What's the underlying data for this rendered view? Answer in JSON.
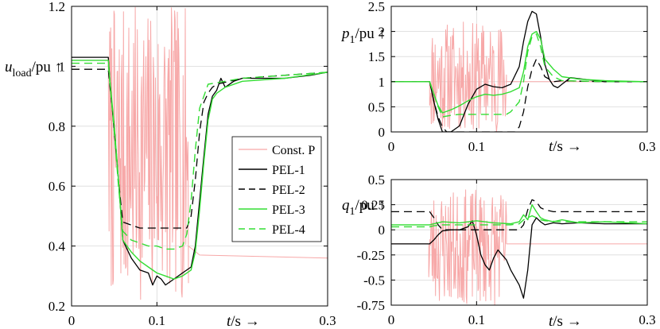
{
  "chart_data": [
    {
      "type": "line",
      "id": "left",
      "ylabel_main": "u",
      "ylabel_sub": "load",
      "ylabel_rest": "/pu ↑",
      "xlabel_main": "t",
      "xlabel_rest": "/s →",
      "xlim": [
        0,
        0.3
      ],
      "ylim": [
        0.2,
        1.2
      ],
      "xticks": [
        0,
        0.1,
        0.3
      ],
      "xtick_labels": [
        "0",
        "0.1",
        "0.3"
      ],
      "yticks": [
        0.2,
        0.4,
        0.6,
        0.8,
        1.0,
        1.2
      ],
      "ytick_labels": [
        "0.2",
        "0.4",
        "0.6",
        "0.8",
        "1",
        "1.2"
      ],
      "legend": [
        "Const. P",
        "PEL-1",
        "PEL-2",
        "PEL-3",
        "PEL-4"
      ],
      "series": [
        {
          "name": "Const. P",
          "noise": {
            "x0": 0.044,
            "x1": 0.137,
            "lo": 0.22,
            "hi": 1.2,
            "seed": 7,
            "n": 150
          },
          "x": [
            0,
            0.043,
            0.044,
            0.137,
            0.15,
            0.3
          ],
          "y": [
            1.02,
            1.02,
            0.45,
            0.4,
            0.37,
            0.36
          ]
        },
        {
          "name": "PEL-1",
          "x": [
            0,
            0.043,
            0.045,
            0.05,
            0.055,
            0.06,
            0.07,
            0.08,
            0.09,
            0.095,
            0.1,
            0.105,
            0.11,
            0.12,
            0.13,
            0.14,
            0.145,
            0.15,
            0.155,
            0.16,
            0.165,
            0.17,
            0.175,
            0.18,
            0.19,
            0.2,
            0.22,
            0.25,
            0.28,
            0.3
          ],
          "y": [
            1.03,
            1.03,
            0.95,
            0.78,
            0.62,
            0.42,
            0.36,
            0.32,
            0.31,
            0.27,
            0.3,
            0.29,
            0.27,
            0.29,
            0.31,
            0.33,
            0.4,
            0.55,
            0.7,
            0.84,
            0.9,
            0.92,
            0.96,
            0.93,
            0.95,
            0.96,
            0.96,
            0.96,
            0.97,
            0.98
          ]
        },
        {
          "name": "PEL-2",
          "x": [
            0,
            0.043,
            0.045,
            0.05,
            0.055,
            0.06,
            0.08,
            0.1,
            0.12,
            0.135,
            0.14,
            0.145,
            0.15,
            0.155,
            0.16,
            0.165,
            0.17,
            0.2,
            0.25,
            0.3
          ],
          "y": [
            0.99,
            0.99,
            0.93,
            0.8,
            0.62,
            0.48,
            0.46,
            0.46,
            0.46,
            0.46,
            0.5,
            0.62,
            0.78,
            0.88,
            0.91,
            0.93,
            0.94,
            0.96,
            0.97,
            0.98
          ]
        },
        {
          "name": "PEL-3",
          "x": [
            0,
            0.043,
            0.045,
            0.05,
            0.055,
            0.06,
            0.07,
            0.08,
            0.09,
            0.1,
            0.11,
            0.12,
            0.13,
            0.14,
            0.145,
            0.15,
            0.155,
            0.16,
            0.165,
            0.17,
            0.18,
            0.2,
            0.25,
            0.3
          ],
          "y": [
            1.02,
            1.02,
            0.95,
            0.8,
            0.62,
            0.42,
            0.38,
            0.35,
            0.33,
            0.31,
            0.3,
            0.29,
            0.3,
            0.32,
            0.38,
            0.52,
            0.68,
            0.82,
            0.89,
            0.91,
            0.93,
            0.95,
            0.96,
            0.98
          ]
        },
        {
          "name": "PEL-4",
          "x": [
            0,
            0.043,
            0.045,
            0.05,
            0.055,
            0.06,
            0.07,
            0.08,
            0.09,
            0.1,
            0.11,
            0.12,
            0.13,
            0.135,
            0.14,
            0.145,
            0.15,
            0.16,
            0.2,
            0.25,
            0.3
          ],
          "y": [
            1.01,
            1.01,
            0.94,
            0.78,
            0.6,
            0.45,
            0.42,
            0.41,
            0.4,
            0.4,
            0.39,
            0.39,
            0.4,
            0.44,
            0.55,
            0.72,
            0.86,
            0.94,
            0.96,
            0.97,
            0.98
          ]
        }
      ]
    },
    {
      "type": "line",
      "id": "top-right",
      "ylabel_main": "p",
      "ylabel_sub": "1",
      "ylabel_rest": "/pu ↑",
      "xlabel_main": "t",
      "xlabel_rest": "/s →",
      "xlim": [
        0,
        0.3
      ],
      "ylim": [
        0,
        2.5
      ],
      "xticks": [
        0,
        0.1,
        0.3
      ],
      "xtick_labels": [
        "0",
        "0.1",
        "0.3"
      ],
      "yticks": [
        0,
        0.5,
        1,
        1.5,
        2,
        2.5
      ],
      "ytick_labels": [
        "0",
        "0.5",
        "1",
        "1.5",
        "2",
        "2.5"
      ],
      "series": [
        {
          "name": "Const. P",
          "noise": {
            "x0": 0.045,
            "x1": 0.135,
            "lo": 0,
            "hi": 2.2,
            "seed": 11,
            "n": 140
          },
          "x": [
            0,
            0.044,
            0.045,
            0.135,
            0.14,
            0.3
          ],
          "y": [
            1,
            1,
            1,
            1,
            1,
            1
          ]
        },
        {
          "name": "PEL-1",
          "x": [
            0,
            0.045,
            0.05,
            0.055,
            0.06,
            0.065,
            0.07,
            0.08,
            0.09,
            0.1,
            0.11,
            0.12,
            0.13,
            0.14,
            0.15,
            0.155,
            0.16,
            0.165,
            0.17,
            0.175,
            0.18,
            0.185,
            0.19,
            0.195,
            0.2,
            0.21,
            0.22,
            0.25,
            0.3
          ],
          "y": [
            1,
            1,
            0.6,
            0.25,
            0,
            0,
            0,
            0.12,
            0.55,
            0.85,
            0.95,
            0.9,
            0.88,
            0.95,
            1.3,
            1.8,
            2.2,
            2.4,
            2.35,
            1.9,
            1.35,
            1.05,
            0.92,
            0.88,
            0.95,
            1.08,
            1.06,
            1.0,
            1.0
          ]
        },
        {
          "name": "PEL-2",
          "x": [
            0,
            0.045,
            0.05,
            0.055,
            0.06,
            0.065,
            0.13,
            0.145,
            0.15,
            0.155,
            0.16,
            0.165,
            0.17,
            0.175,
            0.18,
            0.185,
            0.19,
            0.2,
            0.22,
            0.25,
            0.3
          ],
          "y": [
            1,
            1,
            0.6,
            0.3,
            0.1,
            0,
            0,
            0,
            0.1,
            0.4,
            0.9,
            1.25,
            1.45,
            1.3,
            1.1,
            1.05,
            1.0,
            1.02,
            1.01,
            1.0,
            1.0
          ]
        },
        {
          "name": "PEL-3",
          "x": [
            0,
            0.045,
            0.05,
            0.055,
            0.06,
            0.07,
            0.08,
            0.09,
            0.1,
            0.11,
            0.12,
            0.13,
            0.14,
            0.15,
            0.155,
            0.16,
            0.165,
            0.17,
            0.175,
            0.18,
            0.19,
            0.2,
            0.22,
            0.25,
            0.3
          ],
          "y": [
            1,
            1,
            0.75,
            0.52,
            0.38,
            0.44,
            0.52,
            0.62,
            0.7,
            0.75,
            0.73,
            0.75,
            0.8,
            0.88,
            1.2,
            1.7,
            1.95,
            2.0,
            1.85,
            1.45,
            1.25,
            1.1,
            1.05,
            1.02,
            1.0
          ]
        },
        {
          "name": "PEL-4",
          "x": [
            0,
            0.045,
            0.05,
            0.055,
            0.06,
            0.07,
            0.08,
            0.1,
            0.12,
            0.135,
            0.14,
            0.15,
            0.155,
            0.16,
            0.165,
            0.17,
            0.175,
            0.18,
            0.19,
            0.2,
            0.25,
            0.3
          ],
          "y": [
            1,
            1,
            0.75,
            0.5,
            0.3,
            0.33,
            0.35,
            0.35,
            0.35,
            0.35,
            0.4,
            0.6,
            1.0,
            1.6,
            1.9,
            1.95,
            1.7,
            1.3,
            1.1,
            1.02,
            1.0,
            1.0
          ]
        }
      ]
    },
    {
      "type": "line",
      "id": "bottom-right",
      "ylabel_main": "q",
      "ylabel_sub": "1",
      "ylabel_rest": "/pu ↑",
      "xlabel_main": "t",
      "xlabel_rest": "/s →",
      "xlim": [
        0,
        0.3
      ],
      "ylim": [
        -0.75,
        0.5
      ],
      "xticks": [
        0,
        0.1,
        0.3
      ],
      "xtick_labels": [
        "0",
        "0.1",
        "0.3"
      ],
      "yticks": [
        -0.75,
        -0.5,
        -0.25,
        0,
        0.25,
        0.5
      ],
      "ytick_labels": [
        "-0.75",
        "-0.5",
        "-0.25",
        "0",
        "0.25",
        "0.5"
      ],
      "series": [
        {
          "name": "Const. P",
          "noise": {
            "x0": 0.044,
            "x1": 0.135,
            "lo": -0.75,
            "hi": 0.4,
            "seed": 23,
            "n": 140
          },
          "x": [
            0,
            0.043,
            0.044,
            0.135,
            0.14,
            0.3
          ],
          "y": [
            -0.14,
            -0.14,
            -0.14,
            -0.14,
            -0.14,
            -0.14
          ]
        },
        {
          "name": "PEL-1",
          "x": [
            0,
            0.045,
            0.05,
            0.055,
            0.06,
            0.07,
            0.08,
            0.09,
            0.095,
            0.1,
            0.105,
            0.11,
            0.115,
            0.12,
            0.125,
            0.13,
            0.135,
            0.14,
            0.15,
            0.155,
            0.16,
            0.165,
            0.17,
            0.175,
            0.18,
            0.19,
            0.2,
            0.22,
            0.25,
            0.3
          ],
          "y": [
            -0.14,
            -0.14,
            -0.1,
            -0.05,
            -0.01,
            0,
            0,
            0.03,
            0.09,
            -0.05,
            -0.25,
            -0.35,
            -0.4,
            -0.28,
            -0.2,
            -0.25,
            -0.3,
            -0.4,
            -0.55,
            -0.68,
            -0.4,
            0.05,
            0.12,
            0.08,
            0.05,
            0.07,
            0.06,
            0.07,
            0.06,
            0.06
          ]
        },
        {
          "name": "PEL-2",
          "x": [
            0,
            0.045,
            0.05,
            0.055,
            0.06,
            0.07,
            0.13,
            0.15,
            0.155,
            0.16,
            0.165,
            0.17,
            0.175,
            0.18,
            0.19,
            0.2,
            0.25,
            0.3
          ],
          "y": [
            0.18,
            0.18,
            0.12,
            0.05,
            0,
            0,
            0,
            0,
            0.05,
            0.2,
            0.3,
            0.28,
            0.22,
            0.2,
            0.18,
            0.18,
            0.18,
            0.18
          ]
        },
        {
          "name": "PEL-3",
          "x": [
            0,
            0.045,
            0.05,
            0.06,
            0.08,
            0.1,
            0.12,
            0.14,
            0.15,
            0.155,
            0.16,
            0.165,
            0.17,
            0.175,
            0.18,
            0.19,
            0.2,
            0.22,
            0.25,
            0.3
          ],
          "y": [
            0.05,
            0.05,
            0.06,
            0.08,
            0.07,
            0.09,
            0.07,
            0.06,
            0.08,
            0.15,
            0.1,
            0.25,
            0.18,
            0.12,
            0.1,
            0.08,
            0.1,
            0.07,
            0.08,
            0.06
          ]
        },
        {
          "name": "PEL-4",
          "x": [
            0,
            0.045,
            0.05,
            0.06,
            0.08,
            0.1,
            0.12,
            0.14,
            0.15,
            0.155,
            0.16,
            0.165,
            0.17,
            0.175,
            0.18,
            0.2,
            0.25,
            0.3
          ],
          "y": [
            0.03,
            0.03,
            0.04,
            0.05,
            0.05,
            0.05,
            0.05,
            0.05,
            0.06,
            0.1,
            0.12,
            0.14,
            0.12,
            0.1,
            0.09,
            0.08,
            0.08,
            0.08
          ]
        }
      ]
    }
  ],
  "styles": {
    "Const. P": {
      "color": "#f7a8a8",
      "dash": "",
      "width": 1.0
    },
    "PEL-1": {
      "color": "#000000",
      "dash": "",
      "width": 1.3
    },
    "PEL-2": {
      "color": "#000000",
      "dash": "10 6",
      "width": 1.3
    },
    "PEL-3": {
      "color": "#33dd33",
      "dash": "",
      "width": 1.4
    },
    "PEL-4": {
      "color": "#33dd33",
      "dash": "10 6",
      "width": 1.4
    }
  }
}
